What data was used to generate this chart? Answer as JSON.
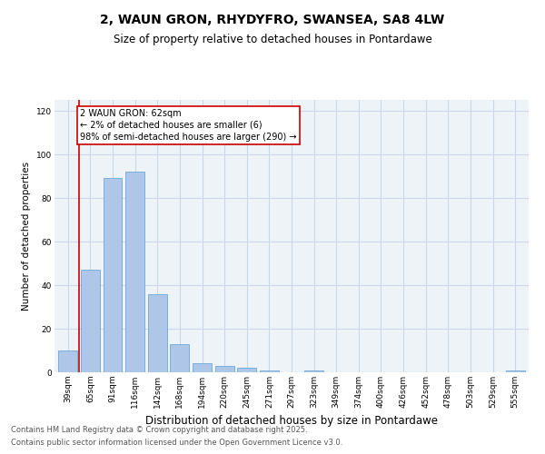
{
  "title": "2, WAUN GRON, RHYDYFRO, SWANSEA, SA8 4LW",
  "subtitle": "Size of property relative to detached houses in Pontardawe",
  "xlabel": "Distribution of detached houses by size in Pontardawe",
  "ylabel": "Number of detached properties",
  "categories": [
    "39sqm",
    "65sqm",
    "91sqm",
    "116sqm",
    "142sqm",
    "168sqm",
    "194sqm",
    "220sqm",
    "245sqm",
    "271sqm",
    "297sqm",
    "323sqm",
    "349sqm",
    "374sqm",
    "400sqm",
    "426sqm",
    "452sqm",
    "478sqm",
    "503sqm",
    "529sqm",
    "555sqm"
  ],
  "values": [
    10,
    47,
    89,
    92,
    36,
    13,
    4,
    3,
    2,
    1,
    0,
    1,
    0,
    0,
    0,
    0,
    0,
    0,
    0,
    0,
    1
  ],
  "bar_color": "#aec6e8",
  "bar_edge_color": "#5a9fd4",
  "ylim": [
    0,
    125
  ],
  "yticks": [
    0,
    20,
    40,
    60,
    80,
    100,
    120
  ],
  "property_line_label": "2 WAUN GRON: 62sqm",
  "annotation_line1": "← 2% of detached houses are smaller (6)",
  "annotation_line2": "98% of semi-detached houses are larger (290) →",
  "annotation_box_color": "#cc0000",
  "vline_color": "#cc0000",
  "grid_color": "#c8d8e8",
  "bg_color": "#eef3f8",
  "footnote1": "Contains HM Land Registry data © Crown copyright and database right 2025.",
  "footnote2": "Contains public sector information licensed under the Open Government Licence v3.0.",
  "title_fontsize": 10,
  "subtitle_fontsize": 8.5,
  "xlabel_fontsize": 8.5,
  "ylabel_fontsize": 7.5,
  "tick_fontsize": 6.5,
  "footnote_fontsize": 6,
  "annotation_fontsize": 7
}
